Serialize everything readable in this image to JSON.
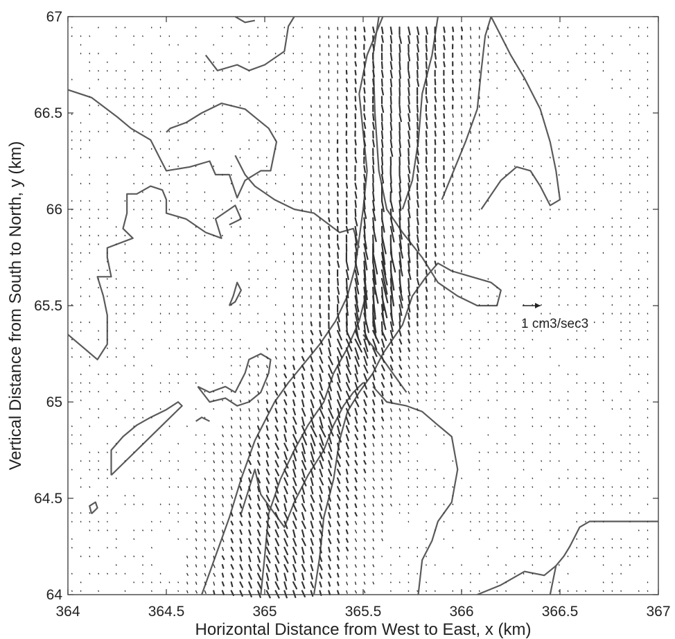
{
  "chart_data": {
    "type": "quiver",
    "title": "",
    "xlabel": "Horizontal Distance from West to East, x (km)",
    "ylabel": "Vertical Distance from South to North, y (km)",
    "xlim": [
      364,
      367
    ],
    "ylim": [
      64,
      67
    ],
    "x_ticks": [
      "364",
      "364.5",
      "365",
      "365.5",
      "366",
      "366.5",
      "367"
    ],
    "y_ticks": [
      "64",
      "64.5",
      "65",
      "65.5",
      "66",
      "66.5",
      "67"
    ],
    "grid": false,
    "legend": {
      "label": "1 cm3/sec3",
      "position": "right",
      "reference_vector_magnitude": 1
    },
    "colors": {
      "contour": "#5a5a5a",
      "vector": "#333333"
    },
    "contours": [
      [
        [
          364,
          66.62
        ],
        [
          364.12,
          66.58
        ],
        [
          364.25,
          66.48
        ],
        [
          364.32,
          66.42
        ],
        [
          364.42,
          66.36
        ],
        [
          364.46,
          66.28
        ],
        [
          364.5,
          66.2
        ],
        [
          364.62,
          66.22
        ],
        [
          364.72,
          66.25
        ],
        [
          364.75,
          66.18
        ],
        [
          364.82,
          66.18
        ],
        [
          364.86,
          66.06
        ],
        [
          364.9,
          66.15
        ],
        [
          364.98,
          66.2
        ],
        [
          365.03,
          66.2
        ],
        [
          365.06,
          66.35
        ],
        [
          365.02,
          66.42
        ],
        [
          364.96,
          66.47
        ],
        [
          364.9,
          66.52
        ],
        [
          364.78,
          66.55
        ],
        [
          364.68,
          66.5
        ],
        [
          364.6,
          66.45
        ],
        [
          364.52,
          66.42
        ],
        [
          364.5,
          66.4
        ]
      ],
      [
        [
          364,
          65.35
        ],
        [
          364.15,
          65.22
        ],
        [
          364.2,
          65.3
        ],
        [
          364.2,
          65.45
        ],
        [
          364.18,
          65.55
        ],
        [
          364.15,
          65.65
        ],
        [
          364.22,
          65.65
        ],
        [
          364.2,
          65.75
        ],
        [
          364.2,
          65.8
        ],
        [
          364.33,
          65.85
        ],
        [
          364.28,
          65.9
        ],
        [
          364.3,
          65.98
        ],
        [
          364.3,
          66.08
        ],
        [
          364.35,
          66.08
        ],
        [
          364.42,
          66.12
        ],
        [
          364.48,
          66.1
        ],
        [
          364.5,
          66.05
        ],
        [
          364.5,
          65.98
        ],
        [
          364.6,
          65.95
        ],
        [
          364.7,
          65.88
        ],
        [
          364.78,
          65.85
        ],
        [
          364.75,
          65.95
        ],
        [
          364.85,
          66.02
        ],
        [
          364.88,
          65.95
        ],
        [
          364.82,
          65.92
        ]
      ],
      [
        [
          364.85,
          66.28
        ],
        [
          364.9,
          66.18
        ],
        [
          364.95,
          66.12
        ],
        [
          365.05,
          66.05
        ],
        [
          365.15,
          66.0
        ],
        [
          365.25,
          65.98
        ],
        [
          365.38,
          65.88
        ],
        [
          365.45,
          65.9
        ],
        [
          365.48,
          65.8
        ]
      ],
      [
        [
          364.7,
          66.8
        ],
        [
          364.76,
          66.72
        ],
        [
          364.86,
          66.75
        ],
        [
          364.92,
          66.72
        ],
        [
          365.0,
          66.75
        ],
        [
          365.1,
          66.82
        ],
        [
          365.12,
          66.95
        ],
        [
          365.15,
          67.0
        ]
      ],
      [
        [
          364.85,
          67.0
        ],
        [
          364.9,
          66.97
        ],
        [
          364.95,
          66.98
        ]
      ],
      [
        [
          364.82,
          65.5
        ],
        [
          364.85,
          65.52
        ],
        [
          364.88,
          65.58
        ],
        [
          364.86,
          65.62
        ],
        [
          364.84,
          65.55
        ],
        [
          364.82,
          65.5
        ]
      ],
      [
        [
          364.66,
          65.08
        ],
        [
          364.72,
          65.05
        ],
        [
          364.8,
          65.08
        ],
        [
          364.85,
          65.05
        ],
        [
          364.9,
          65.15
        ],
        [
          364.92,
          65.22
        ],
        [
          364.98,
          65.25
        ],
        [
          365.03,
          65.22
        ],
        [
          365.02,
          65.15
        ],
        [
          364.98,
          65.05
        ],
        [
          364.92,
          65.0
        ],
        [
          364.86,
          64.98
        ],
        [
          364.8,
          65.02
        ],
        [
          364.72,
          65.0
        ],
        [
          364.66,
          65.08
        ]
      ],
      [
        [
          364.22,
          64.62
        ],
        [
          364.3,
          64.7
        ],
        [
          364.38,
          64.78
        ],
        [
          364.45,
          64.85
        ],
        [
          364.52,
          64.92
        ],
        [
          364.58,
          64.98
        ],
        [
          364.56,
          65.0
        ],
        [
          364.5,
          64.96
        ],
        [
          364.42,
          64.92
        ],
        [
          364.35,
          64.88
        ],
        [
          364.28,
          64.82
        ],
        [
          364.22,
          64.75
        ],
        [
          364.22,
          64.62
        ]
      ],
      [
        [
          364.12,
          64.42
        ],
        [
          364.15,
          64.45
        ],
        [
          364.14,
          64.48
        ],
        [
          364.11,
          64.46
        ],
        [
          364.12,
          64.42
        ]
      ],
      [
        [
          364.65,
          64.9
        ],
        [
          364.68,
          64.92
        ],
        [
          364.72,
          64.9
        ]
      ],
      [
        [
          364.68,
          64.0
        ],
        [
          364.75,
          64.2
        ],
        [
          364.82,
          64.4
        ],
        [
          364.88,
          64.6
        ],
        [
          364.95,
          64.8
        ],
        [
          365.05,
          65.0
        ],
        [
          365.12,
          65.1
        ],
        [
          365.2,
          65.2
        ],
        [
          365.28,
          65.3
        ],
        [
          365.36,
          65.42
        ],
        [
          365.42,
          65.55
        ],
        [
          365.46,
          65.7
        ],
        [
          365.48,
          65.85
        ],
        [
          365.5,
          66.0
        ],
        [
          365.52,
          66.2
        ],
        [
          365.5,
          66.4
        ],
        [
          365.48,
          66.6
        ],
        [
          365.52,
          66.8
        ],
        [
          365.6,
          67.0
        ]
      ],
      [
        [
          364.98,
          64.0
        ],
        [
          365.0,
          64.2
        ],
        [
          365.02,
          64.42
        ],
        [
          365.08,
          64.6
        ],
        [
          365.15,
          64.75
        ],
        [
          365.22,
          64.88
        ],
        [
          365.3,
          65.0
        ],
        [
          365.35,
          65.15
        ],
        [
          365.42,
          65.28
        ],
        [
          365.48,
          65.42
        ],
        [
          365.52,
          65.58
        ]
      ],
      [
        [
          365.25,
          64.0
        ],
        [
          365.28,
          64.2
        ],
        [
          365.3,
          64.4
        ],
        [
          365.35,
          64.6
        ],
        [
          365.38,
          64.8
        ],
        [
          365.42,
          64.95
        ],
        [
          365.48,
          65.05
        ],
        [
          365.55,
          65.15
        ],
        [
          365.6,
          65.25
        ]
      ],
      [
        [
          364.88,
          64.42
        ],
        [
          364.92,
          64.55
        ],
        [
          364.95,
          64.65
        ],
        [
          364.98,
          64.52
        ],
        [
          365.05,
          64.42
        ],
        [
          365.1,
          64.35
        ],
        [
          365.15,
          64.48
        ],
        [
          365.22,
          64.62
        ],
        [
          365.3,
          64.75
        ],
        [
          365.35,
          64.88
        ],
        [
          365.4,
          64.98
        ],
        [
          365.45,
          65.05
        ],
        [
          365.5,
          65.1
        ]
      ],
      [
        [
          365.55,
          65.08
        ],
        [
          365.62,
          65.0
        ],
        [
          365.72,
          64.98
        ],
        [
          365.8,
          64.95
        ],
        [
          365.88,
          64.88
        ],
        [
          365.95,
          64.82
        ],
        [
          365.98,
          64.65
        ],
        [
          365.95,
          64.48
        ],
        [
          365.88,
          64.38
        ],
        [
          365.85,
          64.28
        ],
        [
          365.8,
          64.18
        ],
        [
          365.78,
          64.0
        ]
      ],
      [
        [
          365.6,
          65.25
        ],
        [
          365.7,
          65.4
        ],
        [
          365.75,
          65.55
        ],
        [
          365.82,
          65.65
        ],
        [
          365.88,
          65.72
        ],
        [
          365.95,
          65.68
        ],
        [
          366.05,
          65.65
        ],
        [
          366.15,
          65.62
        ],
        [
          366.2,
          65.58
        ],
        [
          366.18,
          65.5
        ],
        [
          366.08,
          65.5
        ],
        [
          365.98,
          65.55
        ],
        [
          365.88,
          65.62
        ],
        [
          365.8,
          65.75
        ],
        [
          365.7,
          65.88
        ],
        [
          365.62,
          66.0
        ],
        [
          365.58,
          66.2
        ],
        [
          365.56,
          66.5
        ],
        [
          365.55,
          66.8
        ],
        [
          365.58,
          67.0
        ]
      ],
      [
        [
          365.7,
          66.0
        ],
        [
          365.75,
          66.15
        ],
        [
          365.78,
          66.35
        ],
        [
          365.8,
          66.6
        ],
        [
          365.85,
          66.8
        ],
        [
          365.88,
          67.0
        ]
      ],
      [
        [
          365.9,
          66.05
        ],
        [
          365.96,
          66.2
        ],
        [
          366.02,
          66.35
        ],
        [
          366.08,
          66.52
        ],
        [
          366.1,
          66.72
        ],
        [
          366.12,
          66.9
        ],
        [
          366.15,
          67.0
        ]
      ],
      [
        [
          366.1,
          66.0
        ],
        [
          366.2,
          66.15
        ],
        [
          366.28,
          66.22
        ],
        [
          366.35,
          66.2
        ],
        [
          366.4,
          66.12
        ],
        [
          366.45,
          66.02
        ],
        [
          366.5,
          66.05
        ],
        [
          366.48,
          66.2
        ],
        [
          366.45,
          66.35
        ],
        [
          366.4,
          66.52
        ],
        [
          366.32,
          66.68
        ],
        [
          366.25,
          66.8
        ],
        [
          366.2,
          66.9
        ],
        [
          366.15,
          67.0
        ]
      ],
      [
        [
          365.5,
          65.35
        ],
        [
          365.58,
          65.25
        ],
        [
          365.65,
          65.15
        ],
        [
          365.72,
          65.05
        ]
      ],
      [
        [
          366.45,
          64.0
        ],
        [
          366.48,
          64.15
        ],
        [
          366.52,
          64.2
        ],
        [
          366.55,
          64.25
        ],
        [
          366.6,
          64.35
        ],
        [
          366.65,
          64.38
        ],
        [
          366.72,
          64.38
        ],
        [
          366.8,
          64.38
        ],
        [
          366.9,
          64.38
        ],
        [
          367,
          64.38
        ]
      ],
      [
        [
          366.08,
          64.0
        ],
        [
          366.2,
          64.05
        ],
        [
          366.32,
          64.12
        ],
        [
          366.42,
          64.1
        ],
        [
          366.48,
          64.15
        ]
      ]
    ]
  }
}
